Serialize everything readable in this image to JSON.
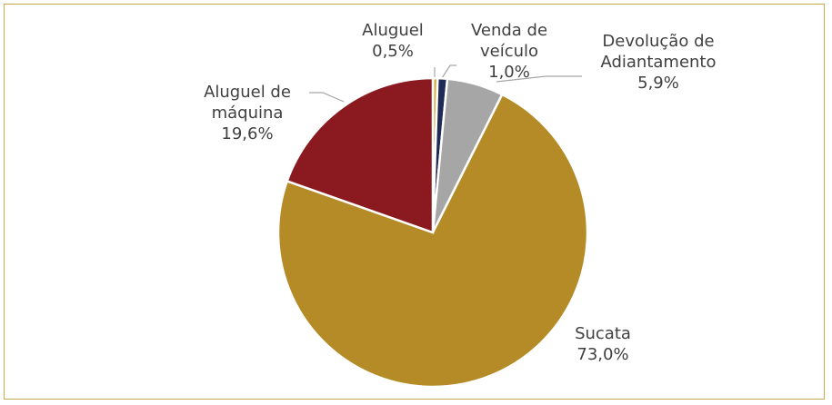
{
  "chart_data": {
    "type": "pie",
    "categories": [
      "Aluguel",
      "Venda de veículo",
      "Devolução de Adiantamento",
      "Sucata",
      "Aluguel de máquina"
    ],
    "values": [
      0.5,
      1.0,
      5.9,
      73.0,
      19.6
    ],
    "value_labels": [
      "0,5%",
      "1,0%",
      "5,9%",
      "73,0%",
      "19,6%"
    ],
    "colors": [
      "#D4B24C",
      "#1F2A56",
      "#A6A6A6",
      "#B58B27",
      "#8B1A20"
    ]
  }
}
